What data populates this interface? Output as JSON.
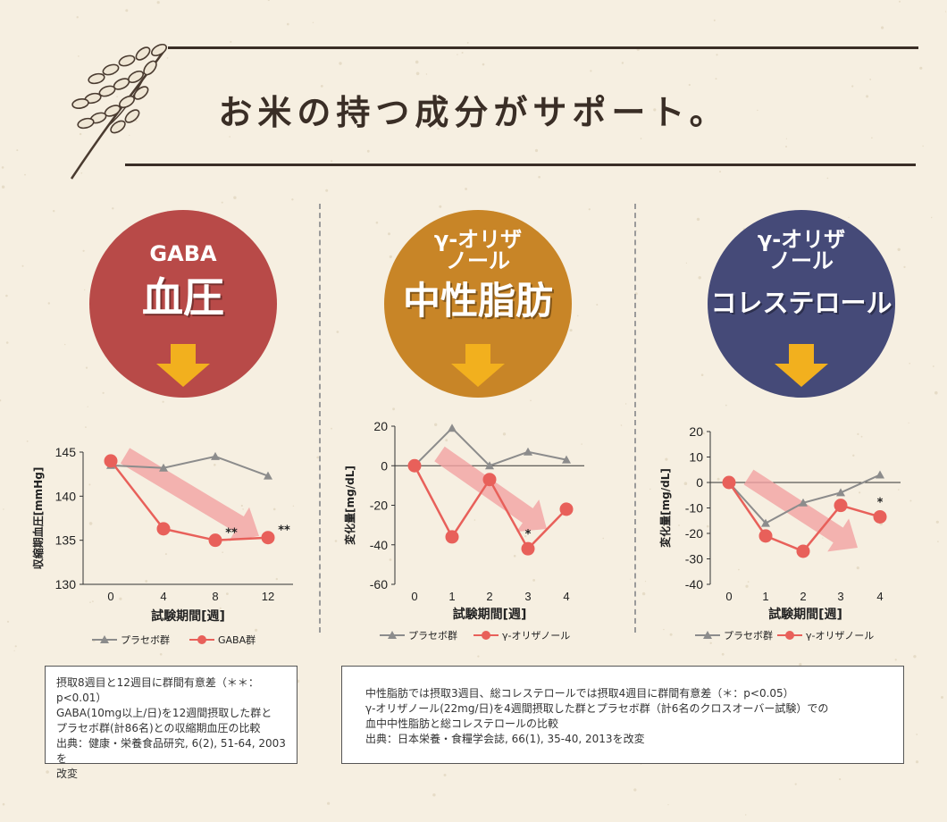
{
  "heading": "お米の持つ成分がサポート。",
  "colors": {
    "placebo": "#8c8c8c",
    "treatment": "#e8605a",
    "trend_arrow": "#f2a3a3",
    "down_arrow": "#f2b01e",
    "gaba_circle": "#b84a48",
    "tg_circle": "#c88527",
    "chol_circle": "#454a78"
  },
  "badges": [
    {
      "small_line1": "GABA",
      "small_line2": "",
      "big": "血圧",
      "color_key": "gaba_circle",
      "icon": "down-arrow-icon"
    },
    {
      "small_line1": "γ-オリザ",
      "small_line2": "ノール",
      "big": "中性脂肪",
      "color_key": "tg_circle",
      "icon": "down-arrow-icon"
    },
    {
      "small_line1": "γ-オリザ",
      "small_line2": "ノール",
      "big": "コレステロール",
      "color_key": "chol_circle",
      "icon": "down-arrow-icon"
    }
  ],
  "chart_data": [
    {
      "type": "line",
      "ylabel": "収縮期血圧[mmHg]",
      "xlabel": "試験期間[週]",
      "x": [
        0,
        4,
        8,
        12
      ],
      "ylim": [
        130,
        145
      ],
      "yticks": [
        130,
        135,
        140,
        145
      ],
      "grid": false,
      "legend_position": "bottom",
      "series": [
        {
          "name": "プラセボ群",
          "marker": "triangle",
          "values": [
            143.5,
            143.2,
            144.5,
            142.3
          ]
        },
        {
          "name": "GABA群",
          "marker": "circle",
          "values": [
            144,
            136.3,
            135,
            135.3
          ]
        }
      ],
      "annotations": [
        {
          "x": 8,
          "text": "**"
        },
        {
          "x": 12,
          "text": "**"
        }
      ]
    },
    {
      "type": "line",
      "ylabel": "変化量[mg/dL]",
      "xlabel": "試験期間[週]",
      "x": [
        0,
        1,
        2,
        3,
        4
      ],
      "ylim": [
        -60,
        20
      ],
      "yticks": [
        -60,
        -40,
        -20,
        0,
        20
      ],
      "grid": false,
      "legend_position": "bottom",
      "series": [
        {
          "name": "プラセボ群",
          "marker": "triangle",
          "values": [
            0,
            19,
            0,
            7,
            3
          ]
        },
        {
          "name": "γ-オリザノール",
          "marker": "circle",
          "values": [
            0,
            -36,
            -7,
            -42,
            -22
          ]
        }
      ],
      "annotations": [
        {
          "x": 3,
          "text": "*"
        }
      ]
    },
    {
      "type": "line",
      "ylabel": "変化量[mg/dL]",
      "xlabel": "試験期間[週]",
      "x": [
        0,
        1,
        2,
        3,
        4
      ],
      "ylim": [
        -40,
        20
      ],
      "yticks": [
        -40,
        -30,
        -20,
        -10,
        0,
        10,
        20
      ],
      "grid": false,
      "legend_position": "bottom",
      "series": [
        {
          "name": "プラセボ群",
          "marker": "triangle",
          "values": [
            0,
            -16,
            -8,
            -4,
            3
          ]
        },
        {
          "name": "γ-オリザノール",
          "marker": "circle",
          "values": [
            0,
            -21,
            -27,
            -9,
            -13.5
          ]
        }
      ],
      "annotations": [
        {
          "x": 4,
          "text": "*"
        }
      ]
    }
  ],
  "notes": {
    "left": "摂取8週目と12週目に群間有意差（＊＊：p<0.01）\nGABA(10mg以上/日)を12週間摂取した群と\nプラセボ群(計86名)との収縮期血圧の比較\n出典：健康・栄養食品研究, 6(2), 51-64, 2003を\n改変",
    "right": "中性脂肪では摂取3週目、総コレステロールでは摂取4週目に群間有意差（＊：p<0.05）\nγ-オリザノール(22mg/日)を4週間摂取した群とプラセボ群（計6名のクロスオーバー試験）での\n血中中性脂肪と総コレステロールの比較\n出典：日本栄養・食糧学会誌, 66(1), 35-40, 2013を改変"
  }
}
